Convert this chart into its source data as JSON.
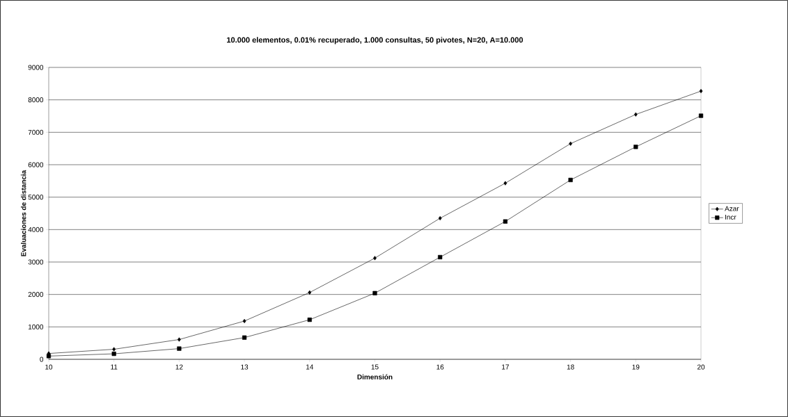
{
  "chart_data": {
    "type": "line",
    "title": "10.000 elementos, 0.01% recuperado, 1.000 consultas, 50 pivotes, N=20, A=10.000",
    "xlabel": "Dimensión",
    "ylabel": "Evaluaciones de distancia",
    "x": [
      10,
      11,
      12,
      13,
      14,
      15,
      16,
      17,
      18,
      19,
      20
    ],
    "series": [
      {
        "name": "Azar",
        "color": "#000000",
        "marker": "diamond",
        "values": [
          180,
          310,
          610,
          1180,
          2060,
          3120,
          4350,
          5430,
          6650,
          7550,
          8270
        ]
      },
      {
        "name": "Incr",
        "color": "#000000",
        "marker": "square",
        "values": [
          100,
          170,
          330,
          670,
          1220,
          2040,
          3150,
          4250,
          5530,
          6550,
          7510
        ]
      }
    ],
    "xlim": [
      10,
      20
    ],
    "xticks": [
      10,
      11,
      12,
      13,
      14,
      15,
      16,
      17,
      18,
      19,
      20
    ],
    "ylim": [
      0,
      9000
    ],
    "yticks": [
      0,
      1000,
      2000,
      3000,
      4000,
      5000,
      6000,
      7000,
      8000,
      9000
    ],
    "grid": "y",
    "legend": "right",
    "line_style": "solid"
  }
}
